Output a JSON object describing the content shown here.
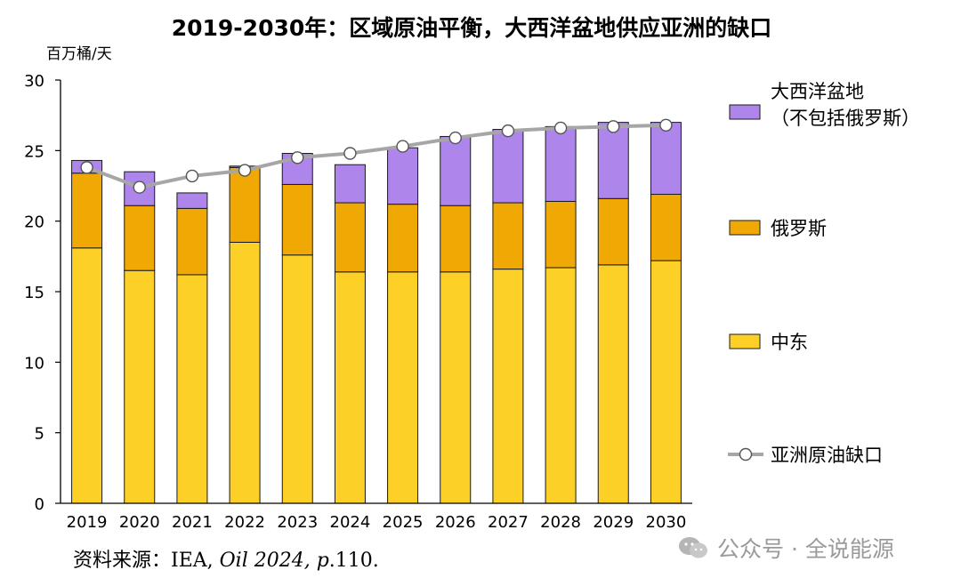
{
  "chart_data": {
    "type": "stacked-bar-with-line",
    "title": "2019-2030年：区域原油平衡，大西洋盆地供应亚洲的缺口",
    "ylabel": "百万桶/天",
    "xlabel": "",
    "ylim": [
      0,
      30
    ],
    "yticks": [
      "0",
      "5",
      "10",
      "15",
      "20",
      "25",
      "30"
    ],
    "grid": false,
    "legend_position": "right",
    "categories": [
      "2019",
      "2020",
      "2021",
      "2022",
      "2023",
      "2024",
      "2025",
      "2026",
      "2027",
      "2028",
      "2029",
      "2030"
    ],
    "series": [
      {
        "name": "中东",
        "color": "#FCD027",
        "values": [
          18.1,
          16.5,
          16.2,
          18.5,
          17.6,
          16.4,
          16.4,
          16.4,
          16.6,
          16.7,
          16.9,
          17.2
        ]
      },
      {
        "name": "俄罗斯",
        "color": "#F0A804",
        "values": [
          5.3,
          4.6,
          4.7,
          5.3,
          5.0,
          4.9,
          4.8,
          4.7,
          4.7,
          4.7,
          4.7,
          4.7
        ]
      },
      {
        "name": "大西洋盆地（不包括俄罗斯）",
        "legend_lines": [
          "大西洋盆地",
          "（不包括俄罗斯）"
        ],
        "color": "#AE85EB",
        "values": [
          0.9,
          2.4,
          1.1,
          0.1,
          2.2,
          2.7,
          4.0,
          4.9,
          5.2,
          5.3,
          5.4,
          5.1
        ]
      },
      {
        "name": "亚洲原油缺口",
        "type": "line",
        "color": "#A6A6A6",
        "values": [
          23.8,
          22.4,
          23.2,
          23.6,
          24.5,
          24.8,
          25.3,
          25.9,
          26.4,
          26.6,
          26.7,
          26.8
        ]
      }
    ],
    "legend_order": [
      2,
      1,
      0,
      3
    ]
  },
  "source": {
    "prefix": "资料来源：IEA, ",
    "italic": "Oil 2024, p",
    "suffix": ".110."
  },
  "watermark": "公众号 · 全说能源"
}
